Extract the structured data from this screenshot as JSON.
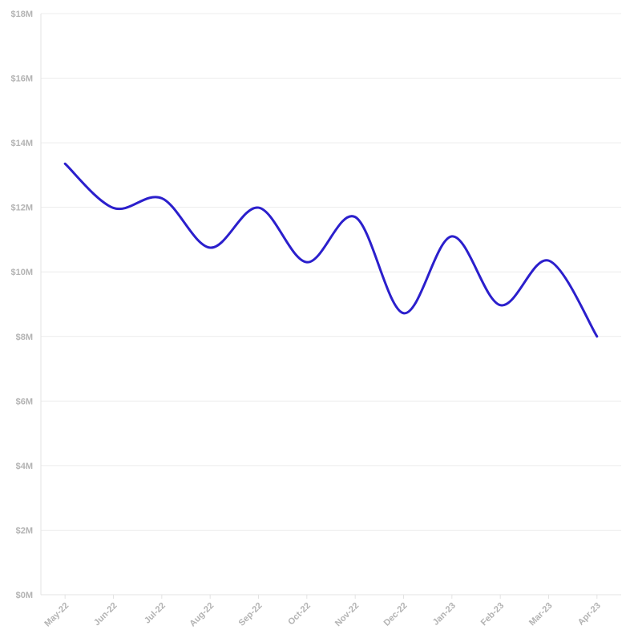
{
  "chart_data": {
    "type": "line",
    "title": "",
    "xlabel": "",
    "ylabel": "",
    "categories": [
      "May-22",
      "Jun-22",
      "Jul-22",
      "Aug-22",
      "Sep-22",
      "Oct-22",
      "Nov-22",
      "Dec-22",
      "Jan-23",
      "Feb-23",
      "Mar-23",
      "Apr-23"
    ],
    "series": [
      {
        "values": [
          13.35,
          11.98,
          12.28,
          10.75,
          11.99,
          10.3,
          11.7,
          8.72,
          11.1,
          8.97,
          10.35,
          8.0
        ],
        "color": "#2b1fcc"
      }
    ],
    "ylim": [
      0,
      18
    ],
    "yticks": [
      0,
      2,
      4,
      6,
      8,
      10,
      12,
      14,
      16,
      18
    ],
    "ytick_labels": [
      "$0M",
      "$2M",
      "$4M",
      "$6M",
      "$8M",
      "$10M",
      "$12M",
      "$14M",
      "$16M",
      "$18M"
    ],
    "grid": true,
    "legend": "none",
    "smooth": true
  }
}
